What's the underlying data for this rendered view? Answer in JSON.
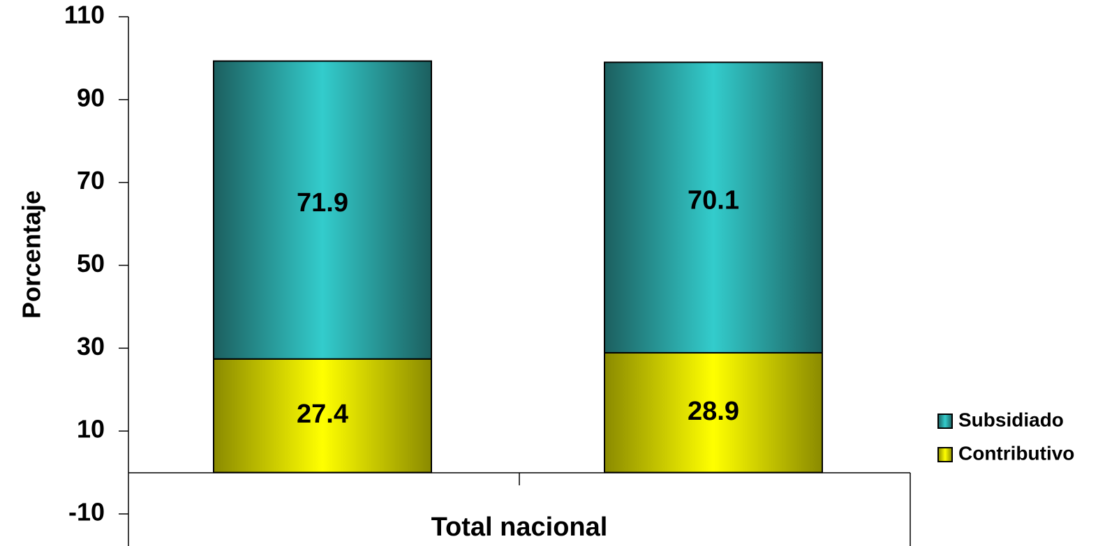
{
  "chart_data": {
    "type": "bar",
    "stacked": true,
    "category_title": "Total nacional",
    "categories": [
      "",
      ""
    ],
    "ylabel": "Porcentaje",
    "ylim": [
      -10,
      110
    ],
    "yticks": [
      -10,
      10,
      30,
      50,
      70,
      90,
      110
    ],
    "grid": false,
    "legend_position": "right",
    "series": [
      {
        "name": "Contributivo",
        "values": [
          27.4,
          28.9
        ],
        "labels": [
          "27.4",
          "28.9"
        ],
        "color": "#ffff00"
      },
      {
        "name": "Subsidiado",
        "values": [
          71.9,
          70.1
        ],
        "labels": [
          "71.9",
          "70.1"
        ],
        "color": "#33cccc"
      }
    ]
  }
}
